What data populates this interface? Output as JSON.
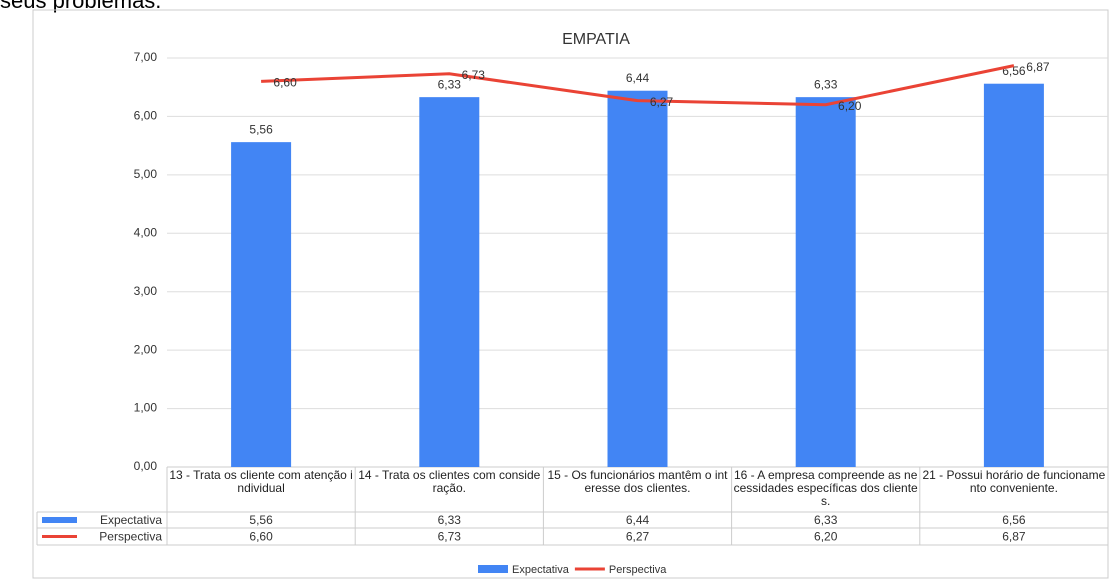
{
  "header_text": "seus problemas.",
  "chart_data": {
    "type": "bar",
    "title": "EMPATIA",
    "categories": [
      "13 - Trata os cliente com atenção individual",
      "14  - Trata os clientes com consideração.",
      "15 - Os funcionários mantêm o interesse dos clientes.",
      "16 - A empresa compreende as necessidades específicas dos clientes.",
      "21 - Possui horário de funcionamento conveniente."
    ],
    "series": [
      {
        "name": "Expectativa",
        "type": "bar",
        "color": "#4285f4",
        "values": [
          5.56,
          6.33,
          6.44,
          6.33,
          6.56
        ],
        "value_labels": [
          "5,56",
          "6,33",
          "6,44",
          "6,33",
          "6,56"
        ]
      },
      {
        "name": "Perspectiva",
        "type": "line",
        "color": "#ea4335",
        "values": [
          6.6,
          6.73,
          6.27,
          6.2,
          6.87
        ],
        "value_labels": [
          "6,60",
          "6,73",
          "6,27",
          "6,20",
          "6,87"
        ]
      }
    ],
    "ylim": [
      0,
      7
    ],
    "yticks": [
      {
        "value": 0,
        "label": "0,00"
      },
      {
        "value": 1,
        "label": "1,00"
      },
      {
        "value": 2,
        "label": "2,00"
      },
      {
        "value": 3,
        "label": "3,00"
      },
      {
        "value": 4,
        "label": "4,00"
      },
      {
        "value": 5,
        "label": "5,00"
      },
      {
        "value": 6,
        "label": "6,00"
      },
      {
        "value": 7,
        "label": "7,00"
      }
    ],
    "grid": true,
    "legend": "bottom"
  }
}
